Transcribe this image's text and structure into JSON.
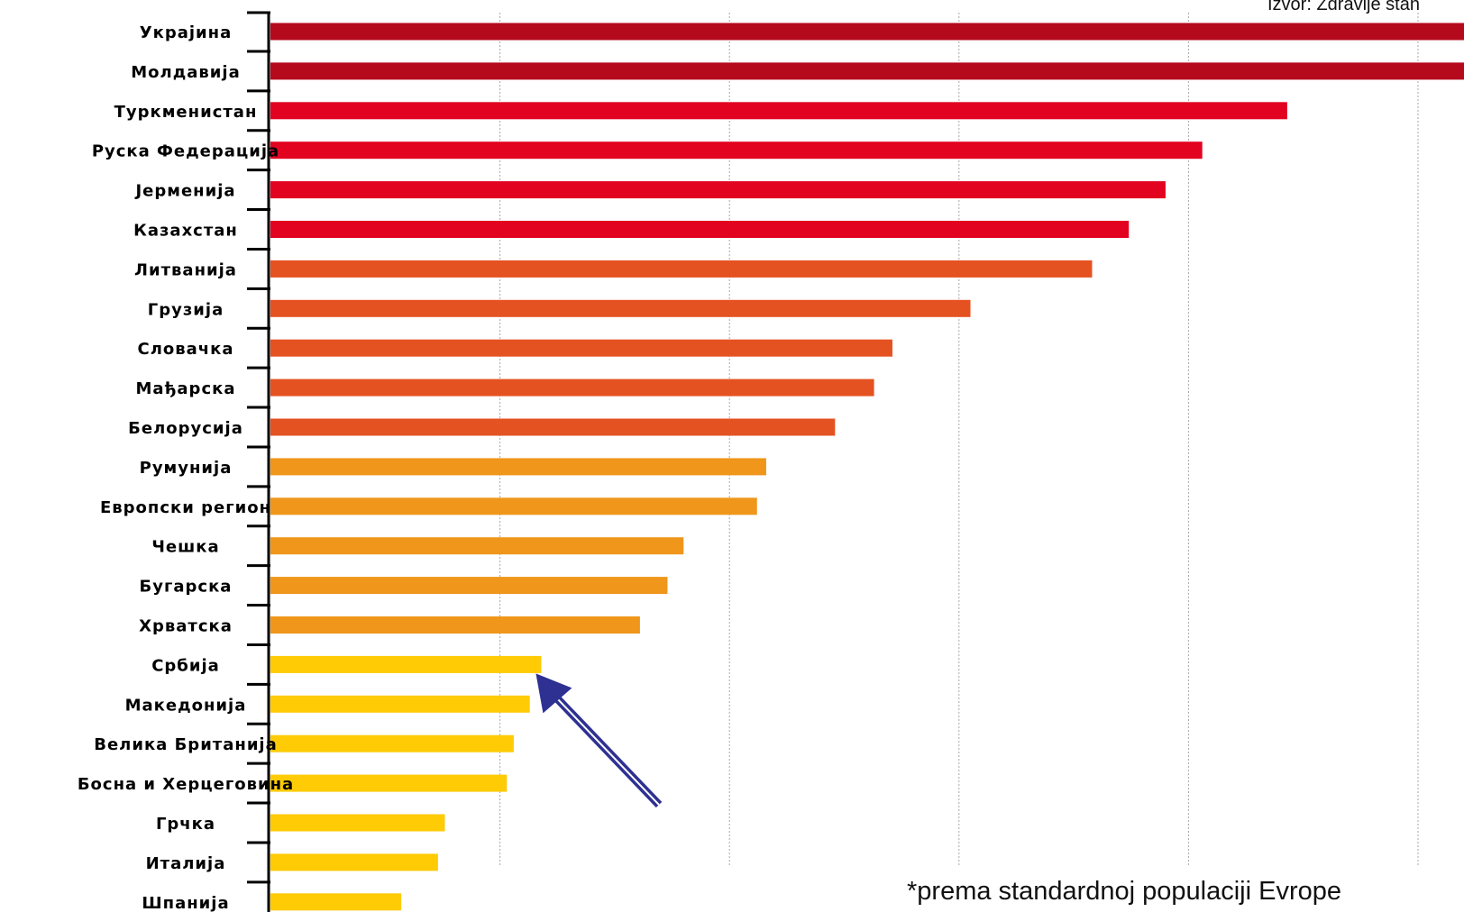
{
  "source_note": "Izvor: Zdravije stan",
  "footnote": "*prema standardnoj populaciji Evrope",
  "chart_data": {
    "type": "bar",
    "orientation": "horizontal",
    "categories": [
      "Украјина",
      "Молдавија",
      "Туркменистан",
      "Руска Федерација",
      "Јерменија",
      "Казахстан",
      "Литванија",
      "Грузија",
      "Словачка",
      "Мађарска",
      "Белорусија",
      "Румунија",
      "Европски регион",
      "Чешка",
      "Бугарска",
      "Хрватска",
      "Србија",
      "Македонија",
      "Велика Британија",
      "Босна и Херцеговина",
      "Грчка",
      "Италија",
      "Шпанија"
    ],
    "values": [
      5.3,
      5.3,
      4.43,
      4.06,
      3.9,
      3.74,
      3.58,
      3.05,
      2.71,
      2.63,
      2.46,
      2.16,
      2.12,
      1.8,
      1.73,
      1.61,
      1.18,
      1.13,
      1.06,
      1.03,
      0.76,
      0.73,
      0.57
    ],
    "color_groups": [
      {
        "color": "#b5091c",
        "count": 2
      },
      {
        "color": "#e20320",
        "count": 4
      },
      {
        "color": "#e55221",
        "count": 5
      },
      {
        "color": "#ef961b",
        "count": 5
      },
      {
        "color": "#fecb04",
        "count": 7
      }
    ],
    "xlim": [
      0,
      5.3
    ],
    "gridlines": [
      1,
      2,
      3,
      4,
      5
    ],
    "grid": true,
    "highlight": {
      "category": "Србија",
      "marker": "arrow",
      "color": "#2e3192"
    }
  }
}
